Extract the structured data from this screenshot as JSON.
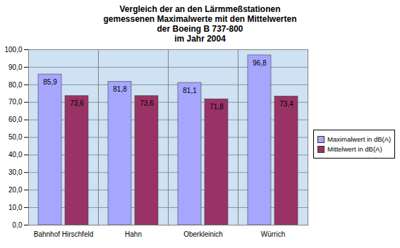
{
  "chart_data": {
    "type": "bar",
    "title": "Vergleich der an den Lärmmeßstationen\ngemessenen Maximalwerte mit den Mittelwerten\nder Boeing B 737-800\nim Jahr 2004",
    "categories": [
      "Bahnhof Hirschfeld",
      "Hahn",
      "Oberkleinich",
      "Würrich"
    ],
    "series": [
      {
        "name": "Maximalwert in dB(A)",
        "color": "#a6a6ff",
        "values": [
          85.9,
          81.8,
          81.1,
          96.8
        ],
        "value_labels": [
          "85,9",
          "81,8",
          "81,1",
          "96,8"
        ]
      },
      {
        "name": "Mittelwert in dB(A)",
        "color": "#993366",
        "values": [
          73.6,
          73.6,
          71.8,
          73.4
        ],
        "value_labels": [
          "73,6",
          "73,6",
          "71,8",
          "73,4"
        ]
      }
    ],
    "ylim": [
      0,
      100
    ],
    "yticks": [
      {
        "value": 0,
        "label": "0,0"
      },
      {
        "value": 10,
        "label": "10,0"
      },
      {
        "value": 20,
        "label": "20,0"
      },
      {
        "value": 30,
        "label": "30,0"
      },
      {
        "value": 40,
        "label": "40,0"
      },
      {
        "value": 50,
        "label": "50,0"
      },
      {
        "value": 60,
        "label": "60,0"
      },
      {
        "value": 70,
        "label": "70,0"
      },
      {
        "value": 80,
        "label": "80,0"
      },
      {
        "value": 90,
        "label": "90,0"
      },
      {
        "value": 100,
        "label": "100,0"
      }
    ],
    "grid": true,
    "legend": "right",
    "data_labels": true
  }
}
